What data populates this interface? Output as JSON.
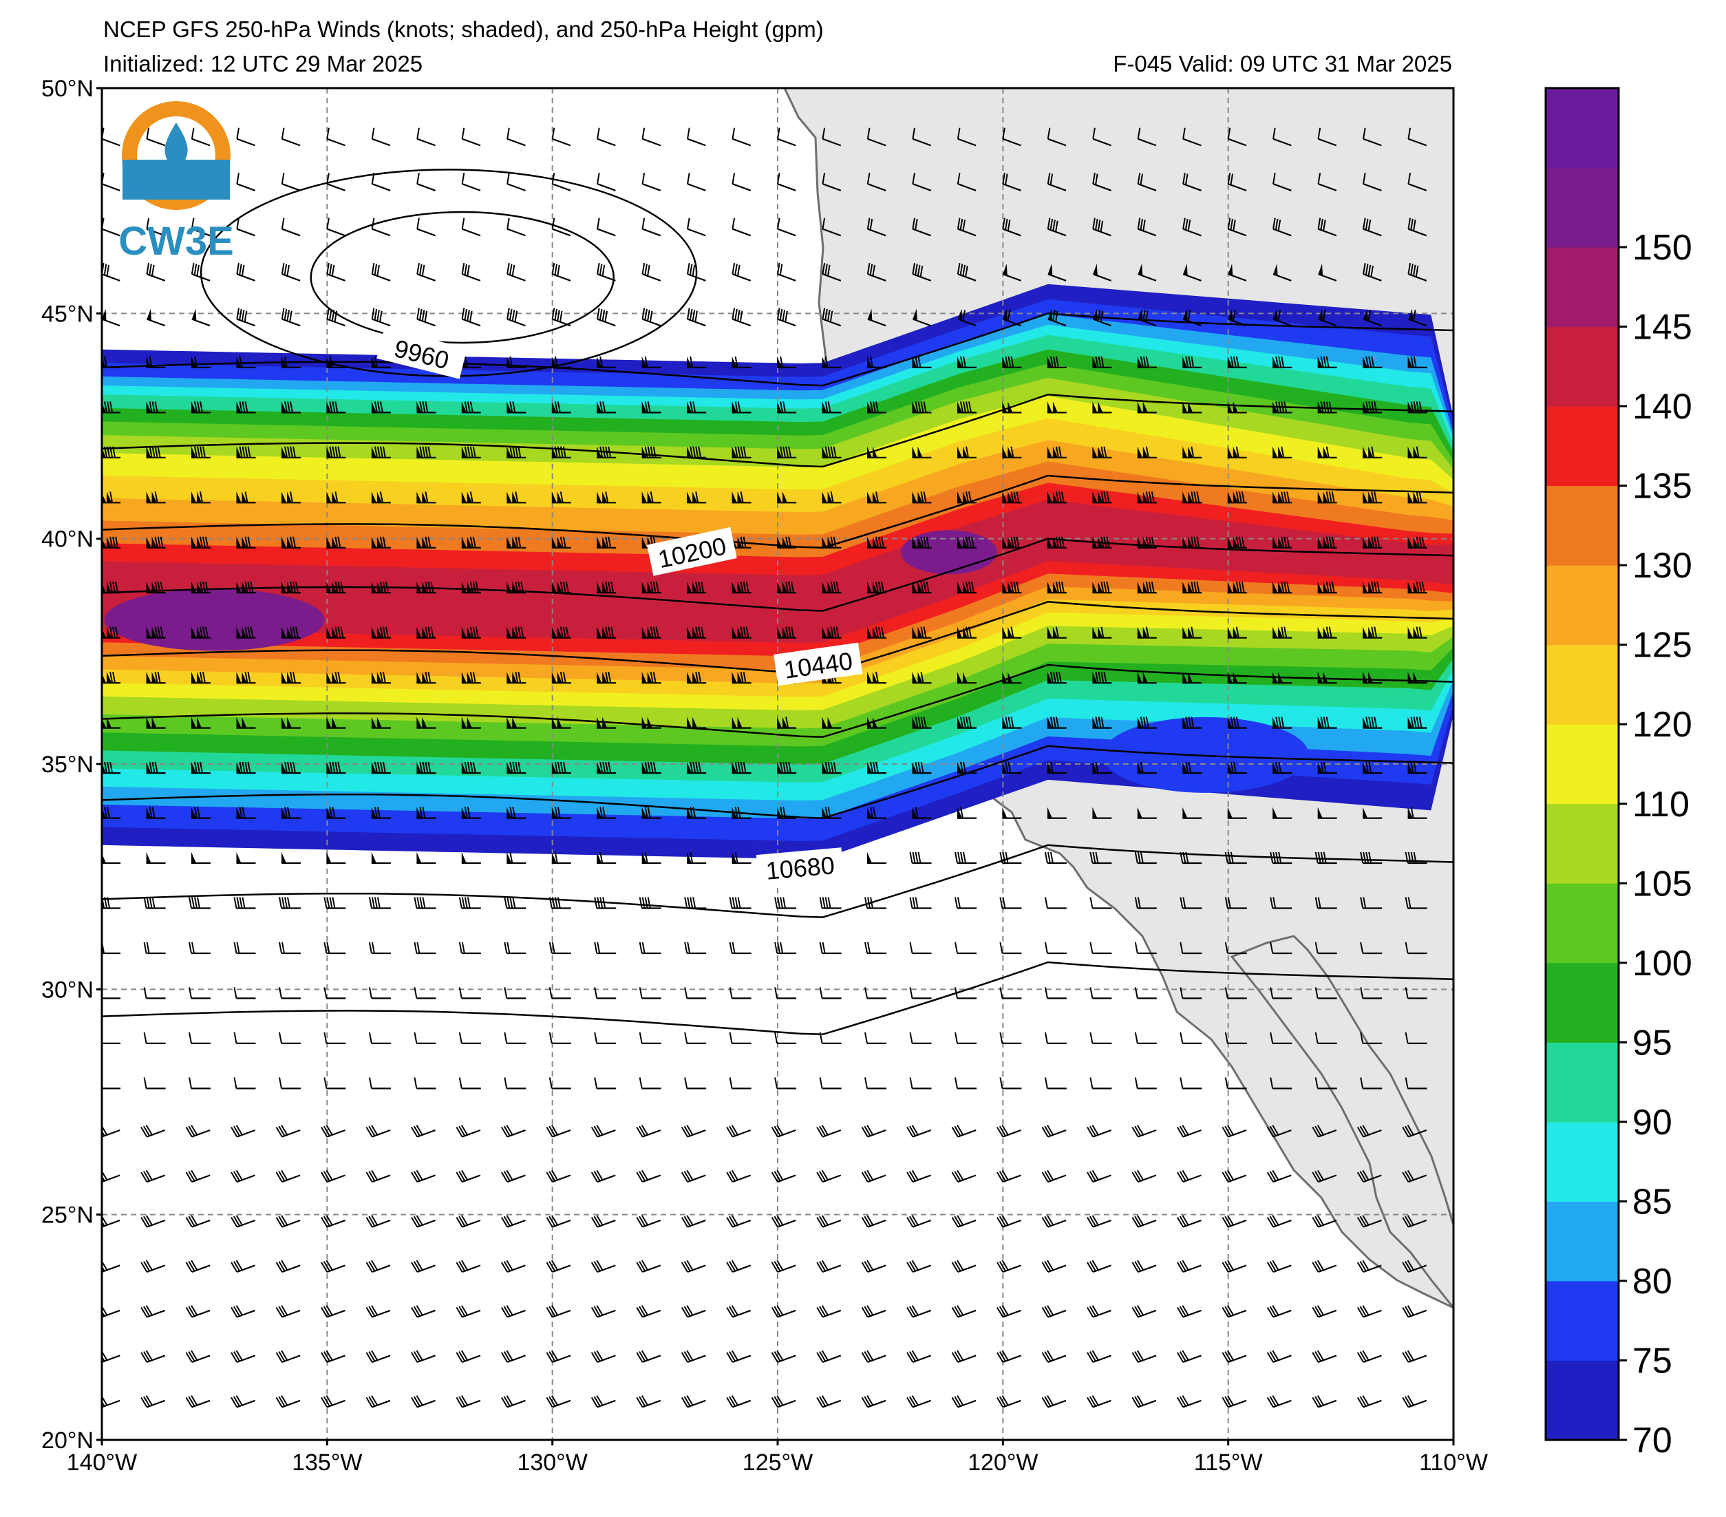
{
  "header": {
    "title": "NCEP GFS 250-hPa Winds (knots; shaded), and 250-hPa Height (gpm)",
    "init": "Initialized: 12 UTC 29 Mar 2025",
    "valid": "F-045  Valid: 09 UTC 31 Mar 2025"
  },
  "logo": {
    "text": "CW3E",
    "ring_color": "#f0931c",
    "drop_color": "#2a8fc0"
  },
  "map": {
    "lon_range": [
      -140,
      -110
    ],
    "lat_range": [
      20,
      50
    ],
    "lat_labels": [
      "50°N",
      "45°N",
      "40°N",
      "35°N",
      "30°N",
      "25°N",
      "20°N"
    ],
    "lon_labels": [
      "140°W",
      "135°W",
      "130°W",
      "125°W",
      "120°W",
      "115°W",
      "110°W"
    ],
    "land_color": "#e6e6e6",
    "grid": "dashed"
  },
  "contours": {
    "labels": [
      {
        "text": "9960",
        "lon": -132.9,
        "lat": 44.1,
        "angle": 14
      },
      {
        "text": "10200",
        "lon": -126.9,
        "lat": 39.7,
        "angle": -12
      },
      {
        "text": "10440",
        "lon": -124.1,
        "lat": 37.2,
        "angle": -8
      },
      {
        "text": "10680",
        "lon": -124.5,
        "lat": 32.7,
        "angle": -5
      }
    ]
  },
  "colorbar": {
    "levels": [
      "70",
      "75",
      "80",
      "85",
      "90",
      "95",
      "100",
      "105",
      "110",
      "120",
      "125",
      "130",
      "135",
      "140",
      "145",
      "150"
    ],
    "colors": [
      "#1f1fc4",
      "#1f3af0",
      "#22a8f0",
      "#22e8e8",
      "#22d898",
      "#22b020",
      "#5ec822",
      "#a8d822",
      "#f0f020",
      "#f8d020",
      "#f8a820",
      "#f07a20",
      "#f02020",
      "#c8203c",
      "#a01c6a",
      "#7a1c8c",
      "#6a1c9c"
    ]
  }
}
